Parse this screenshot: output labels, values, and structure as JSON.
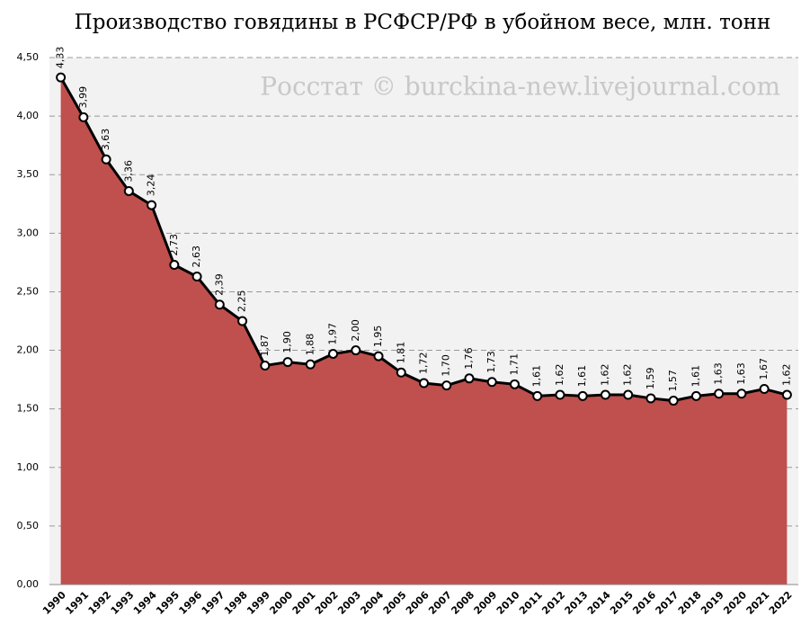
{
  "chart_data": {
    "type": "area",
    "title": "Производство говядины в РСФСР/РФ в убойном весе, млн. тонн",
    "annotation": "Росстат © burckina-new.livejournal.com",
    "categories": [
      "1990",
      "1991",
      "1992",
      "1993",
      "1994",
      "1995",
      "1996",
      "1997",
      "1998",
      "1999",
      "2000",
      "2001",
      "2002",
      "2003",
      "2004",
      "2005",
      "2006",
      "2007",
      "2008",
      "2009",
      "2010",
      "2011",
      "2012",
      "2013",
      "2014",
      "2015",
      "2016",
      "2017",
      "2018",
      "2019",
      "2020",
      "2021",
      "2022"
    ],
    "values": [
      4.33,
      3.99,
      3.63,
      3.36,
      3.24,
      2.73,
      2.63,
      2.39,
      2.25,
      1.87,
      1.9,
      1.88,
      1.97,
      2.0,
      1.95,
      1.81,
      1.72,
      1.7,
      1.76,
      1.73,
      1.71,
      1.61,
      1.62,
      1.61,
      1.62,
      1.62,
      1.59,
      1.57,
      1.61,
      1.63,
      1.63,
      1.67,
      1.62
    ],
    "value_labels": [
      "4,33",
      "3,99",
      "3,63",
      "3,36",
      "3,24",
      "2,73",
      "2,63",
      "2,39",
      "2,25",
      "1,87",
      "1,90",
      "1,88",
      "1,97",
      "2,00",
      "1,95",
      "1,81",
      "1,72",
      "1,70",
      "1,76",
      "1,73",
      "1,71",
      "1,61",
      "1,62",
      "1,61",
      "1,62",
      "1,62",
      "1,59",
      "1,57",
      "1,61",
      "1,63",
      "1,63",
      "1,67",
      "1,62"
    ],
    "color": "#c0504d",
    "line_color": "#000000",
    "ylim": [
      0,
      4.5
    ],
    "yticks": [
      {
        "value": 0,
        "label": "0,00"
      },
      {
        "value": 0.5,
        "label": "0,50"
      },
      {
        "value": 1,
        "label": "1,00"
      },
      {
        "value": 1.5,
        "label": "1,50"
      },
      {
        "value": 2,
        "label": "2,00"
      },
      {
        "value": 2.5,
        "label": "2,50"
      },
      {
        "value": 3,
        "label": "3,00"
      },
      {
        "value": 3.5,
        "label": "3,50"
      },
      {
        "value": 4,
        "label": "4,00"
      },
      {
        "value": 4.5,
        "label": "4,50"
      }
    ],
    "grid": true
  }
}
